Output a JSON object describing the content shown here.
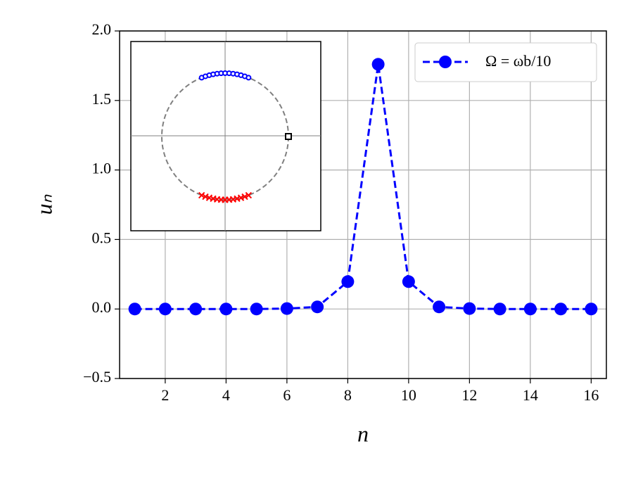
{
  "chart_data": {
    "type": "line",
    "xlabel": "n",
    "ylabel": "uₙ",
    "x": [
      1,
      2,
      3,
      4,
      5,
      6,
      7,
      8,
      9,
      10,
      11,
      12,
      13,
      14,
      15,
      16
    ],
    "series": [
      {
        "name": "Ω = ωb/10",
        "color": "#0000ff",
        "values": [
          0,
          0,
          0,
          0,
          0,
          0.003,
          0.015,
          0.197,
          1.76,
          0.197,
          0.015,
          0.003,
          0,
          0,
          0,
          0
        ]
      }
    ],
    "xlim": [
      0.5,
      16.5
    ],
    "xticks": [
      2,
      4,
      6,
      8,
      10,
      12,
      14,
      16
    ],
    "ylim": [
      -0.5,
      2.0
    ],
    "yticks": [
      {
        "value": -0.5,
        "label": "−0.5"
      },
      {
        "value": 0,
        "label": "0.0"
      },
      0.5,
      {
        "value": 1,
        "label": "1.0"
      },
      1.5,
      {
        "value": 2,
        "label": "2.0"
      }
    ],
    "grid": true,
    "legend": "upper right"
  }
}
